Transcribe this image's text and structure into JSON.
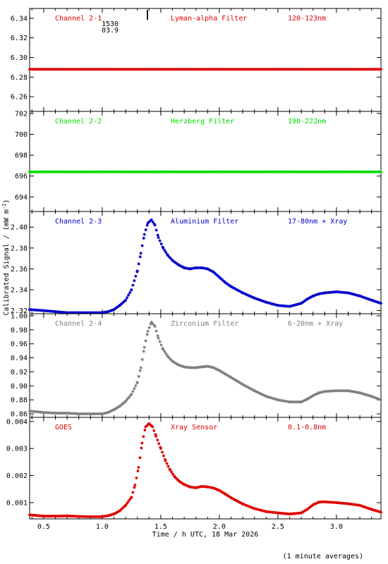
{
  "xlabel": "Time / h UTC, 18 Mar 2026",
  "ylabel": "Calibrated Signal / (mW m",
  "ylabel_sup": "-2",
  "ylabel_tail": ")",
  "footnote": "(1 minute averages)",
  "marker_text": {
    "line1": "1530",
    "line2": "03.9"
  },
  "colors": {
    "red": "#e00000",
    "green": "#00dd00",
    "blue": "#0000cc",
    "gray": "#808080",
    "axis": "#000000"
  },
  "chart_data": [
    {
      "type": "scatter",
      "labels": [
        "Channel 2-1",
        "Lyman-alpha Filter",
        "120-123nm"
      ],
      "color": "#e00000",
      "x_ticks": [
        0.5,
        1.0,
        1.5,
        2.0,
        2.5,
        3.0
      ],
      "y_ticks": [
        6.26,
        6.28,
        6.3,
        6.32,
        6.34
      ],
      "y_tick_labels": [
        "6.26",
        "6.28",
        "6.30",
        "6.32",
        "6.34"
      ],
      "xlim": [
        0.38,
        3.38
      ],
      "ylim": [
        6.245,
        6.35
      ],
      "series": [
        {
          "x": [
            0.38,
            1.0,
            1.5,
            2.0,
            2.5,
            3.0,
            3.38
          ],
          "y": [
            6.288,
            6.288,
            6.288,
            6.288,
            6.288,
            6.288,
            6.288
          ]
        }
      ]
    },
    {
      "type": "scatter",
      "labels": [
        "Channel 2-2",
        "Herzberg Filter",
        "190-222nm"
      ],
      "color": "#00dd00",
      "x_ticks": [
        0.5,
        1.0,
        1.5,
        2.0,
        2.5,
        3.0
      ],
      "y_ticks": [
        694,
        696,
        698,
        700,
        702
      ],
      "y_tick_labels": [
        "694",
        "696",
        "698",
        "700",
        "702"
      ],
      "xlim": [
        0.38,
        3.38
      ],
      "ylim": [
        692.6,
        702.2
      ],
      "series": [
        {
          "x": [
            0.38,
            1.0,
            1.5,
            2.0,
            2.5,
            3.0,
            3.38
          ],
          "y": [
            696.4,
            696.4,
            696.4,
            696.4,
            696.4,
            696.4,
            696.4
          ]
        }
      ]
    },
    {
      "type": "scatter",
      "labels": [
        "Channel 2-3",
        "Aluminium Filter",
        "17-80nm + Xray"
      ],
      "color": "#0000cc",
      "x_ticks": [
        0.5,
        1.0,
        1.5,
        2.0,
        2.5,
        3.0
      ],
      "y_ticks": [
        2.32,
        2.34,
        2.36,
        2.38,
        2.4
      ],
      "y_tick_labels": [
        "2.32",
        "2.34",
        "2.36",
        "2.38",
        "2.40"
      ],
      "xlim": [
        0.38,
        3.38
      ],
      "ylim": [
        2.317,
        2.415
      ],
      "series": [
        {
          "x": [
            0.38,
            0.5,
            0.6,
            0.7,
            0.8,
            0.9,
            1.0,
            1.05,
            1.1,
            1.15,
            1.2,
            1.25,
            1.3,
            1.33,
            1.36,
            1.39,
            1.42,
            1.45,
            1.48,
            1.52,
            1.56,
            1.6,
            1.65,
            1.7,
            1.75,
            1.8,
            1.85,
            1.9,
            1.95,
            2.0,
            2.05,
            2.1,
            2.2,
            2.3,
            2.4,
            2.5,
            2.6,
            2.7,
            2.75,
            2.8,
            2.85,
            2.9,
            3.0,
            3.1,
            3.2,
            3.3,
            3.38
          ],
          "y": [
            2.321,
            2.32,
            2.319,
            2.318,
            2.318,
            2.318,
            2.318,
            2.319,
            2.321,
            2.325,
            2.33,
            2.34,
            2.358,
            2.375,
            2.393,
            2.404,
            2.407,
            2.402,
            2.39,
            2.38,
            2.373,
            2.368,
            2.364,
            2.361,
            2.36,
            2.361,
            2.361,
            2.36,
            2.357,
            2.352,
            2.347,
            2.343,
            2.337,
            2.332,
            2.328,
            2.325,
            2.324,
            2.327,
            2.331,
            2.334,
            2.336,
            2.337,
            2.338,
            2.337,
            2.334,
            2.33,
            2.327
          ]
        }
      ]
    },
    {
      "type": "scatter",
      "labels": [
        "Channel 2-4",
        "Zirconium Filter",
        "6-20nm + Xray"
      ],
      "color": "#808080",
      "x_ticks": [
        0.5,
        1.0,
        1.5,
        2.0,
        2.5,
        3.0
      ],
      "y_ticks": [
        0.86,
        0.88,
        0.9,
        0.92,
        0.94,
        0.96,
        0.98,
        1.0
      ],
      "y_tick_labels": [
        "0.86",
        "0.88",
        "0.90",
        "0.92",
        "0.94",
        "0.96",
        "0.98",
        "1.00"
      ],
      "xlim": [
        0.38,
        3.38
      ],
      "ylim": [
        0.855,
        1.003
      ],
      "series": [
        {
          "x": [
            0.38,
            0.5,
            0.6,
            0.7,
            0.8,
            0.9,
            1.0,
            1.05,
            1.1,
            1.15,
            1.2,
            1.25,
            1.3,
            1.33,
            1.36,
            1.39,
            1.42,
            1.45,
            1.48,
            1.52,
            1.56,
            1.6,
            1.65,
            1.7,
            1.75,
            1.8,
            1.85,
            1.9,
            1.95,
            2.0,
            2.05,
            2.1,
            2.2,
            2.3,
            2.4,
            2.5,
            2.6,
            2.7,
            2.75,
            2.8,
            2.85,
            2.9,
            3.0,
            3.1,
            3.2,
            3.3,
            3.38
          ],
          "y": [
            0.864,
            0.862,
            0.861,
            0.861,
            0.86,
            0.86,
            0.86,
            0.862,
            0.866,
            0.871,
            0.878,
            0.888,
            0.905,
            0.926,
            0.955,
            0.978,
            0.991,
            0.985,
            0.968,
            0.952,
            0.942,
            0.935,
            0.93,
            0.927,
            0.926,
            0.926,
            0.927,
            0.928,
            0.926,
            0.922,
            0.917,
            0.912,
            0.902,
            0.893,
            0.885,
            0.88,
            0.877,
            0.877,
            0.881,
            0.886,
            0.89,
            0.892,
            0.893,
            0.893,
            0.89,
            0.885,
            0.88
          ]
        }
      ]
    },
    {
      "type": "scatter",
      "labels": [
        "GOES",
        "Xray Sensor",
        "0.1-0.8nm"
      ],
      "color": "#e00000",
      "x_ticks": [
        0.5,
        1.0,
        1.5,
        2.0,
        2.5,
        3.0
      ],
      "x_tick_labels": [
        "0.5",
        "1.0",
        "1.5",
        "2.0",
        "2.5",
        "3.0"
      ],
      "y_ticks": [
        0.001,
        0.002,
        0.003,
        0.004
      ],
      "y_tick_labels": [
        "0.001",
        "0.002",
        "0.003",
        "0.004"
      ],
      "xlim": [
        0.38,
        3.38
      ],
      "ylim": [
        0.0004,
        0.00415
      ],
      "series": [
        {
          "x": [
            0.38,
            0.5,
            0.6,
            0.7,
            0.8,
            0.9,
            1.0,
            1.05,
            1.1,
            1.15,
            1.2,
            1.25,
            1.28,
            1.31,
            1.34,
            1.37,
            1.4,
            1.43,
            1.46,
            1.5,
            1.54,
            1.58,
            1.62,
            1.66,
            1.7,
            1.75,
            1.8,
            1.85,
            1.9,
            1.95,
            2.0,
            2.05,
            2.1,
            2.2,
            2.3,
            2.4,
            2.5,
            2.6,
            2.7,
            2.75,
            2.8,
            2.85,
            2.9,
            3.0,
            3.1,
            3.2,
            3.3,
            3.38
          ],
          "y": [
            0.00055,
            0.0005,
            0.0005,
            0.00051,
            0.00049,
            0.00048,
            0.00048,
            0.00052,
            0.00058,
            0.0007,
            0.0009,
            0.0012,
            0.00165,
            0.0023,
            0.0032,
            0.0038,
            0.00392,
            0.0038,
            0.00345,
            0.003,
            0.00255,
            0.0022,
            0.00195,
            0.00178,
            0.00167,
            0.00158,
            0.00155,
            0.0016,
            0.00158,
            0.00154,
            0.00145,
            0.00132,
            0.00118,
            0.00095,
            0.00078,
            0.00067,
            0.00062,
            0.00058,
            0.00062,
            0.00075,
            0.00092,
            0.00102,
            0.00103,
            0.001,
            0.00096,
            0.0009,
            0.00075,
            0.00065
          ]
        }
      ]
    }
  ]
}
